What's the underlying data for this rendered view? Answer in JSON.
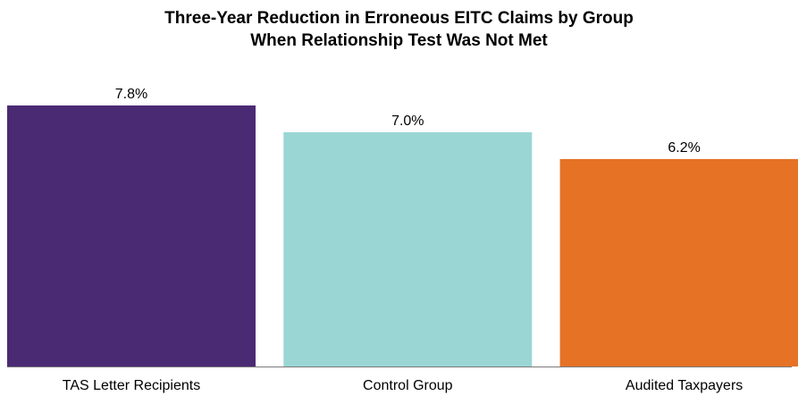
{
  "chart_data": {
    "type": "bar",
    "title_lines": [
      "Three-Year Reduction in Erroneous EITC Claims by Group",
      "When Relationship Test Was Not Met"
    ],
    "categories": [
      "TAS Letter Recipients",
      "Control Group",
      "Audited Taxpayers"
    ],
    "values": [
      7.8,
      7.0,
      6.2
    ],
    "data_labels": [
      "7.8%",
      "7.0%",
      "6.2%"
    ],
    "colors": [
      "#4b2a74",
      "#9ad6d4",
      "#e57225"
    ],
    "ylim": [
      0,
      7.8
    ],
    "grid": false,
    "legend": "none"
  }
}
